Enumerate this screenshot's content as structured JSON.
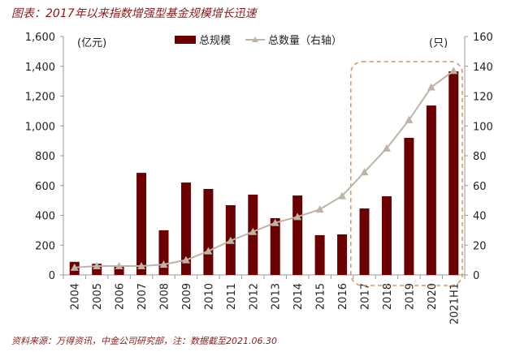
{
  "chart_data": {
    "type": "bar+line",
    "title": "图表：2017年以来指数增强型基金规模增长迅速",
    "categories": [
      "2004",
      "2005",
      "2006",
      "2007",
      "2008",
      "2009",
      "2010",
      "2011",
      "2012",
      "2013",
      "2014",
      "2015",
      "2016",
      "2017",
      "2018",
      "2019",
      "2020",
      "2021H1"
    ],
    "series": [
      {
        "name": "总规模",
        "type": "bar",
        "axis": "left",
        "color": "#6b0000",
        "values": [
          88,
          75,
          58,
          685,
          300,
          620,
          577,
          468,
          539,
          381,
          533,
          267,
          272,
          446,
          528,
          920,
          1137,
          1366
        ]
      },
      {
        "name": "总数量（右轴）",
        "type": "line",
        "axis": "right",
        "color": "#bdb3a6",
        "values": [
          5,
          6,
          6,
          6,
          7,
          10,
          16,
          23,
          29,
          35,
          39,
          44,
          53,
          69,
          85,
          104,
          126,
          137
        ]
      }
    ],
    "left_axis": {
      "unit": "(亿元)",
      "range": [
        0,
        1600
      ],
      "ticks": [
        "0",
        "200",
        "400",
        "600",
        "800",
        "1,000",
        "1,200",
        "1,400",
        "1,600"
      ]
    },
    "right_axis": {
      "unit": "(只)",
      "range": [
        0,
        160
      ],
      "ticks": [
        "0",
        "20",
        "40",
        "60",
        "80",
        "100",
        "120",
        "140",
        "160"
      ]
    },
    "legend_placement": "top-center",
    "highlight": {
      "from": "2017",
      "to": "2021H1",
      "style": "dashed rounded box",
      "color": "#d9925a"
    },
    "grid": false,
    "source_note": "资料来源：万得资讯，中金公司研究部，注：数据截至2021.06.30"
  }
}
